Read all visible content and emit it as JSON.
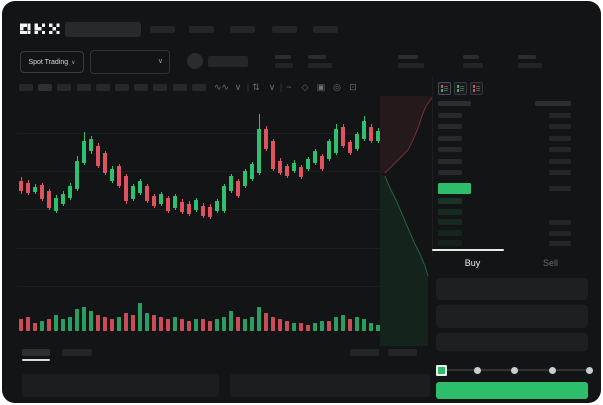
{
  "app": {
    "logo_text": "OKX"
  },
  "header": {
    "nav_placeholder_count": 5
  },
  "subheader": {
    "market_selector_label": "Spot Trading",
    "market_selector_chevron": "∨",
    "pair_selector_chevron": "∨",
    "stat_group_count": 5
  },
  "chart_toolbar": {
    "icons": [
      {
        "name": "indicator-wave-icon",
        "glyph": "∿∿"
      },
      {
        "name": "chevron-down-icon",
        "glyph": "∨"
      },
      {
        "name": "divider",
        "glyph": "|"
      },
      {
        "name": "candle-style-icon",
        "glyph": "⇅"
      },
      {
        "name": "chevron-down-icon",
        "glyph": "∨"
      },
      {
        "name": "divider",
        "glyph": "|"
      },
      {
        "name": "line-tool-icon",
        "glyph": "~"
      },
      {
        "name": "draw-tool-icon",
        "glyph": "◇"
      },
      {
        "name": "camera-icon",
        "glyph": "▣"
      },
      {
        "name": "settings-icon",
        "glyph": "◎"
      },
      {
        "name": "fullscreen-icon",
        "glyph": "⊡"
      }
    ]
  },
  "order_book": {
    "view_icons": [
      {
        "name": "book-both-view-icon",
        "top": "#df5360",
        "bottom": "#2ebd6b",
        "selected": true
      },
      {
        "name": "book-bids-view-icon",
        "top": "#2ebd6b",
        "bottom": "#2ebd6b",
        "selected": false
      },
      {
        "name": "book-asks-view-icon",
        "top": "#df5360",
        "bottom": "#df5360",
        "selected": false
      }
    ],
    "ask_row_count": 6,
    "bid_rows": [
      {
        "opacity": 0.85,
        "has_amount": false
      },
      {
        "opacity": 0.65,
        "has_amount": false
      },
      {
        "opacity": 0.55,
        "has_amount": true
      },
      {
        "opacity": 0.45,
        "has_amount": true
      },
      {
        "opacity": 0.38,
        "has_amount": true
      }
    ],
    "last_price_highlight_color": "#2ebd6b"
  },
  "trade_panel": {
    "buy_tab_label": "Buy",
    "sell_tab_label": "Sell",
    "field_count": 3,
    "slider_tick_count": 5,
    "submit_button_color": "#2ebd6b"
  },
  "bottom_panel": {
    "tab_count": 2,
    "right_placeholder_count": 2,
    "box_count": 2
  },
  "colors": {
    "window_bg": "#131415",
    "panel_box": "#1d1f20",
    "accent_green": "#2ebd6b",
    "candle_green": "#2fbf71",
    "candle_red": "#df5360",
    "volume_green": "#2a9d61",
    "volume_red": "#c94c58",
    "depth_ask_line": "#7a4a4a",
    "depth_bid_line": "#3f7f5f"
  },
  "chart_data": {
    "type": "candlestick",
    "title": "",
    "note": "No numeric axis labels are visible; values are pixel-space [wickTop, bodyTop, bodyBottom, wickBottom, color] within a 363x200 plot area, y down.",
    "candles": [
      [
        81,
        85,
        95,
        98,
        "r"
      ],
      [
        84,
        87,
        97,
        99,
        "r"
      ],
      [
        88,
        91,
        96,
        98,
        "g"
      ],
      [
        87,
        89,
        103,
        105,
        "r"
      ],
      [
        93,
        95,
        112,
        114,
        "r"
      ],
      [
        99,
        102,
        115,
        117,
        "g"
      ],
      [
        95,
        98,
        108,
        110,
        "g"
      ],
      [
        87,
        90,
        102,
        104,
        "g"
      ],
      [
        60,
        65,
        93,
        95,
        "g"
      ],
      [
        36,
        45,
        67,
        69,
        "g"
      ],
      [
        40,
        43,
        55,
        58,
        "g"
      ],
      [
        47,
        50,
        70,
        72,
        "r"
      ],
      [
        55,
        57,
        77,
        79,
        "r"
      ],
      [
        70,
        73,
        85,
        87,
        "g"
      ],
      [
        68,
        70,
        90,
        92,
        "r"
      ],
      [
        78,
        80,
        105,
        108,
        "r"
      ],
      [
        88,
        90,
        103,
        105,
        "g"
      ],
      [
        83,
        85,
        97,
        99,
        "g"
      ],
      [
        88,
        90,
        105,
        107,
        "r"
      ],
      [
        98,
        100,
        110,
        112,
        "r"
      ],
      [
        96,
        98,
        108,
        110,
        "g"
      ],
      [
        100,
        102,
        115,
        117,
        "r"
      ],
      [
        98,
        100,
        112,
        114,
        "g"
      ],
      [
        103,
        106,
        116,
        118,
        "r"
      ],
      [
        105,
        108,
        118,
        120,
        "r"
      ],
      [
        102,
        104,
        114,
        116,
        "g"
      ],
      [
        107,
        110,
        120,
        122,
        "r"
      ],
      [
        108,
        111,
        121,
        123,
        "r"
      ],
      [
        103,
        105,
        115,
        117,
        "g"
      ],
      [
        88,
        90,
        115,
        117,
        "g"
      ],
      [
        78,
        80,
        95,
        97,
        "g"
      ],
      [
        83,
        85,
        100,
        102,
        "r"
      ],
      [
        73,
        75,
        90,
        92,
        "g"
      ],
      [
        66,
        68,
        83,
        85,
        "g"
      ],
      [
        18,
        33,
        77,
        79,
        "g"
      ],
      [
        30,
        33,
        53,
        55,
        "r"
      ],
      [
        43,
        45,
        73,
        75,
        "r"
      ],
      [
        62,
        65,
        77,
        79,
        "r"
      ],
      [
        68,
        70,
        80,
        82,
        "r"
      ],
      [
        64,
        67,
        75,
        77,
        "g"
      ],
      [
        69,
        71,
        81,
        83,
        "r"
      ],
      [
        61,
        63,
        73,
        75,
        "g"
      ],
      [
        53,
        55,
        67,
        69,
        "g"
      ],
      [
        58,
        60,
        73,
        75,
        "r"
      ],
      [
        43,
        45,
        63,
        65,
        "g"
      ],
      [
        28,
        33,
        57,
        59,
        "g"
      ],
      [
        28,
        31,
        50,
        52,
        "r"
      ],
      [
        44,
        46,
        57,
        59,
        "r"
      ],
      [
        36,
        38,
        53,
        55,
        "g"
      ],
      [
        20,
        25,
        43,
        45,
        "g"
      ],
      [
        28,
        31,
        45,
        47,
        "r"
      ],
      [
        32,
        35,
        45,
        47,
        "g"
      ]
    ],
    "volumes": [
      [
        12,
        "r"
      ],
      [
        14,
        "r"
      ],
      [
        8,
        "r"
      ],
      [
        10,
        "g"
      ],
      [
        12,
        "r"
      ],
      [
        16,
        "g"
      ],
      [
        12,
        "g"
      ],
      [
        14,
        "g"
      ],
      [
        22,
        "g"
      ],
      [
        24,
        "g"
      ],
      [
        20,
        "g"
      ],
      [
        16,
        "r"
      ],
      [
        14,
        "r"
      ],
      [
        12,
        "r"
      ],
      [
        14,
        "g"
      ],
      [
        18,
        "r"
      ],
      [
        16,
        "r"
      ],
      [
        28,
        "g"
      ],
      [
        18,
        "g"
      ],
      [
        16,
        "r"
      ],
      [
        14,
        "r"
      ],
      [
        12,
        "r"
      ],
      [
        14,
        "g"
      ],
      [
        12,
        "r"
      ],
      [
        10,
        "r"
      ],
      [
        12,
        "g"
      ],
      [
        12,
        "r"
      ],
      [
        10,
        "r"
      ],
      [
        12,
        "g"
      ],
      [
        14,
        "g"
      ],
      [
        20,
        "g"
      ],
      [
        14,
        "r"
      ],
      [
        12,
        "g"
      ],
      [
        14,
        "g"
      ],
      [
        24,
        "g"
      ],
      [
        18,
        "r"
      ],
      [
        14,
        "r"
      ],
      [
        12,
        "r"
      ],
      [
        10,
        "r"
      ],
      [
        8,
        "g"
      ],
      [
        8,
        "r"
      ],
      [
        6,
        "r"
      ],
      [
        8,
        "g"
      ],
      [
        10,
        "g"
      ],
      [
        10,
        "r"
      ],
      [
        14,
        "g"
      ],
      [
        16,
        "g"
      ],
      [
        12,
        "r"
      ],
      [
        14,
        "g"
      ],
      [
        12,
        "g"
      ],
      [
        8,
        "g"
      ],
      [
        6,
        "g"
      ]
    ],
    "depth": {
      "asks_line": "52,2 46,10 42,20 38,32 33,44 28,54 20,62 12,70 5,77",
      "asks_fill": "0,0 52,0 52,2 46,10 42,20 38,32 33,44 28,54 20,62 12,70 5,77 0,77",
      "bids_line": "5,80 10,92 16,104 22,118 28,132 34,146 40,158 45,170 48,180",
      "bids_fill": "0,78 5,80 10,92 16,104 22,118 28,132 34,146 40,158 45,170 48,180 48,250 0,250"
    }
  }
}
